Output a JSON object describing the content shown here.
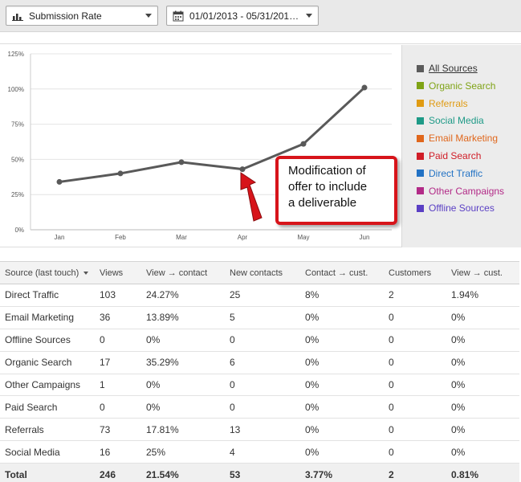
{
  "toolbar": {
    "metric": "Submission Rate",
    "date_range": "01/01/2013 - 05/31/201…"
  },
  "chart_data": {
    "type": "line",
    "x": [
      "Jan",
      "Feb",
      "Mar",
      "Apr",
      "May",
      "Jun"
    ],
    "y_ticks": [
      "0%",
      "25%",
      "50%",
      "75%",
      "100%",
      "125%"
    ],
    "ylim": [
      0,
      125
    ],
    "series": [
      {
        "values": [
          34,
          40,
          48,
          43,
          61,
          101
        ],
        "color": "#595959"
      }
    ],
    "grid": true
  },
  "annotation": {
    "lines": [
      "Modification of",
      "offer to include",
      "a deliverable"
    ],
    "color": "#d7141a"
  },
  "legend": [
    {
      "label": "All Sources",
      "color": "#5b5b5b"
    },
    {
      "label": "Organic Search",
      "color": "#7fa315"
    },
    {
      "label": "Referrals",
      "color": "#e09b12"
    },
    {
      "label": "Social Media",
      "color": "#1e9a87"
    },
    {
      "label": "Email Marketing",
      "color": "#e0671c"
    },
    {
      "label": "Paid Search",
      "color": "#d01d27"
    },
    {
      "label": "Direct Traffic",
      "color": "#2272c4"
    },
    {
      "label": "Other Campaigns",
      "color": "#b22a87"
    },
    {
      "label": "Offline Sources",
      "color": "#5a3fc4"
    }
  ],
  "table": {
    "headers": [
      "Source (last touch)",
      "Views",
      "View → contact",
      "New contacts",
      "Contact → cust.",
      "Customers",
      "View → cust."
    ],
    "rows": [
      [
        "Direct Traffic",
        "103",
        "24.27%",
        "25",
        "8%",
        "2",
        "1.94%"
      ],
      [
        "Email Marketing",
        "36",
        "13.89%",
        "5",
        "0%",
        "0",
        "0%"
      ],
      [
        "Offline Sources",
        "0",
        "0%",
        "0",
        "0%",
        "0",
        "0%"
      ],
      [
        "Organic Search",
        "17",
        "35.29%",
        "6",
        "0%",
        "0",
        "0%"
      ],
      [
        "Other Campaigns",
        "1",
        "0%",
        "0",
        "0%",
        "0",
        "0%"
      ],
      [
        "Paid Search",
        "0",
        "0%",
        "0",
        "0%",
        "0",
        "0%"
      ],
      [
        "Referrals",
        "73",
        "17.81%",
        "13",
        "0%",
        "0",
        "0%"
      ],
      [
        "Social Media",
        "16",
        "25%",
        "4",
        "0%",
        "0",
        "0%"
      ]
    ],
    "total": [
      "Total",
      "246",
      "21.54%",
      "53",
      "3.77%",
      "2",
      "0.81%"
    ]
  }
}
